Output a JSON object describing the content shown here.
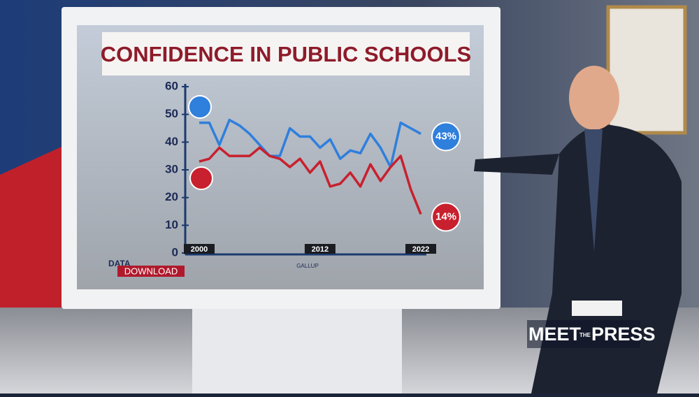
{
  "chart_data": {
    "type": "line",
    "title": "CONFIDENCE IN PUBLIC SCHOOLS",
    "x": [
      2000,
      2001,
      2002,
      2003,
      2004,
      2005,
      2006,
      2007,
      2008,
      2009,
      2010,
      2011,
      2012,
      2013,
      2014,
      2015,
      2016,
      2017,
      2018,
      2019,
      2020,
      2021,
      2022
    ],
    "series": [
      {
        "color": "#2f7fdc",
        "values": [
          47,
          47,
          39,
          48,
          46,
          43,
          39,
          35,
          35,
          45,
          42,
          42,
          38,
          41,
          34,
          37,
          36,
          43,
          38,
          31,
          47,
          45,
          43
        ],
        "value_labels": [
          null,
          null,
          null,
          null,
          null,
          null,
          null,
          null,
          null,
          null,
          null,
          null,
          null,
          null,
          null,
          null,
          null,
          null,
          null,
          null,
          null,
          null,
          "43%"
        ]
      },
      {
        "color": "#c8202e",
        "values": [
          33,
          34,
          38,
          35,
          35,
          35,
          38,
          35,
          34,
          31,
          34,
          29,
          33,
          24,
          25,
          29,
          24,
          32,
          26,
          31,
          35,
          23,
          14
        ],
        "value_labels": [
          null,
          null,
          null,
          null,
          null,
          null,
          null,
          null,
          null,
          null,
          null,
          null,
          null,
          null,
          null,
          null,
          null,
          null,
          null,
          null,
          null,
          null,
          "14%"
        ]
      }
    ],
    "xlim": [
      2000,
      2022
    ],
    "xticks": [
      2000,
      2012,
      2022
    ],
    "ylim": [
      0,
      60
    ],
    "yticks": [
      0,
      10,
      20,
      30,
      40,
      50,
      60
    ],
    "brand_top": "DATA",
    "brand_bottom": "DOWNLOAD",
    "source": "GALLUP"
  },
  "overlay": {
    "logo_left": "MEET",
    "logo_mid": "THE",
    "logo_right": "PRESS"
  }
}
